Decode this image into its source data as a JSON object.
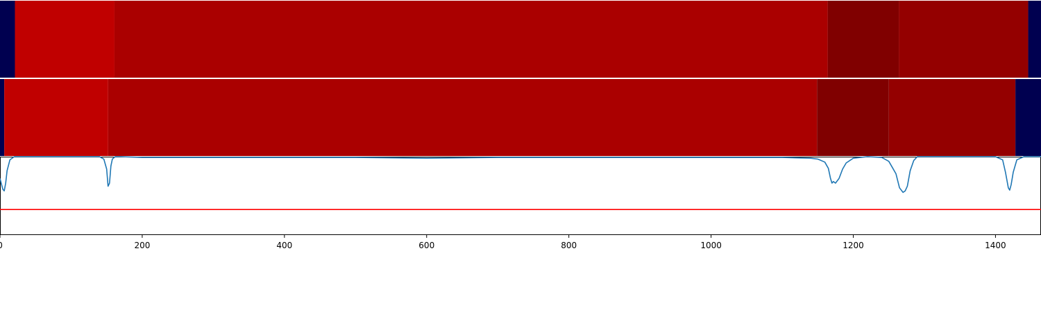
{
  "chart_data": [
    {
      "type": "heatmap",
      "xlim": [
        0,
        1464
      ],
      "bands": [
        {
          "x0": 0,
          "x1": 21,
          "color": "#000050"
        },
        {
          "x0": 21,
          "x1": 161,
          "color": "#c00000"
        },
        {
          "x0": 161,
          "x1": 1164,
          "color": "#aa0000"
        },
        {
          "x0": 1164,
          "x1": 1264,
          "color": "#800000"
        },
        {
          "x0": 1264,
          "x1": 1446,
          "color": "#940000"
        },
        {
          "x0": 1446,
          "x1": 1464,
          "color": "#000050"
        }
      ]
    },
    {
      "type": "heatmap",
      "xlim": [
        0,
        1464
      ],
      "bands": [
        {
          "x0": 0,
          "x1": 6,
          "color": "#000050"
        },
        {
          "x0": 6,
          "x1": 152,
          "color": "#c00000"
        },
        {
          "x0": 152,
          "x1": 1149,
          "color": "#aa0000"
        },
        {
          "x0": 1149,
          "x1": 1250,
          "color": "#800000"
        },
        {
          "x0": 1250,
          "x1": 1428,
          "color": "#940000"
        },
        {
          "x0": 1428,
          "x1": 1464,
          "color": "#000050"
        }
      ]
    },
    {
      "type": "line",
      "xlim": [
        0,
        1464
      ],
      "ylim": [
        0,
        1
      ],
      "series": [
        {
          "color": "#1f77b4",
          "x": [
            0,
            2,
            4,
            6,
            8,
            10,
            14,
            20,
            40,
            100,
            140,
            146,
            150,
            152,
            154,
            156,
            158,
            162,
            170,
            200,
            300,
            400,
            500,
            600,
            700,
            800,
            900,
            1000,
            1100,
            1140,
            1150,
            1160,
            1165,
            1168,
            1170,
            1172,
            1175,
            1180,
            1185,
            1190,
            1200,
            1220,
            1240,
            1250,
            1255,
            1260,
            1265,
            1270,
            1273,
            1276,
            1280,
            1285,
            1290,
            1300,
            1350,
            1400,
            1410,
            1414,
            1418,
            1420,
            1422,
            1425,
            1430,
            1440,
            1460,
            1464
          ],
          "y": [
            0.72,
            0.65,
            0.58,
            0.56,
            0.66,
            0.82,
            0.96,
            1.0,
            1.0,
            1.0,
            1.0,
            0.97,
            0.84,
            0.62,
            0.66,
            0.88,
            0.97,
            1.0,
            1.0,
            0.99,
            0.99,
            0.99,
            0.99,
            0.98,
            0.99,
            0.99,
            0.99,
            0.99,
            0.99,
            0.98,
            0.97,
            0.93,
            0.85,
            0.72,
            0.66,
            0.68,
            0.66,
            0.72,
            0.84,
            0.92,
            0.98,
            1.0,
            0.99,
            0.94,
            0.86,
            0.78,
            0.6,
            0.54,
            0.56,
            0.62,
            0.82,
            0.95,
            1.0,
            1.0,
            1.0,
            1.0,
            0.96,
            0.8,
            0.6,
            0.57,
            0.64,
            0.8,
            0.96,
            1.0,
            1.0,
            1.0
          ]
        },
        {
          "color": "#ff0000",
          "x": [
            0,
            1464
          ],
          "y": [
            0.32,
            0.32
          ]
        }
      ],
      "xticks": [
        0,
        200,
        400,
        600,
        800,
        1000,
        1200,
        1400
      ],
      "xtick_labels": [
        "0",
        "200",
        "400",
        "600",
        "800",
        "1000",
        "1200",
        "1400"
      ]
    }
  ]
}
